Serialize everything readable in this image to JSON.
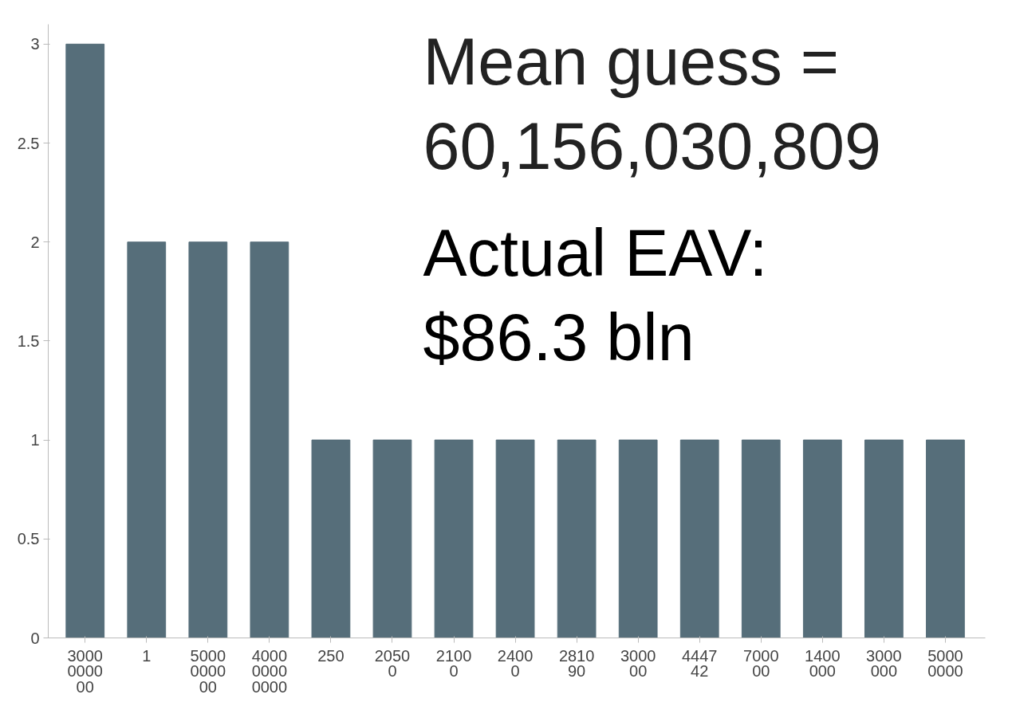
{
  "chart_data": {
    "type": "bar",
    "categories": [
      "3000000000",
      "1",
      "5000000000",
      "400000000000",
      "250",
      "20500",
      "21000",
      "24000",
      "281090",
      "300000",
      "444742",
      "700000",
      "1400000",
      "3000000",
      "50000000"
    ],
    "values": [
      3,
      2,
      2,
      2,
      1,
      1,
      1,
      1,
      1,
      1,
      1,
      1,
      1,
      1,
      1
    ],
    "color": "#566e7a",
    "ylim": [
      0,
      3.1
    ],
    "yticks": [
      0,
      0.5,
      1,
      1.5,
      2,
      2.5,
      3
    ],
    "grid": false,
    "annotations": [
      "Mean guess =\n60,156,030,809",
      "Actual EAV:\n$86.3 bln"
    ]
  }
}
